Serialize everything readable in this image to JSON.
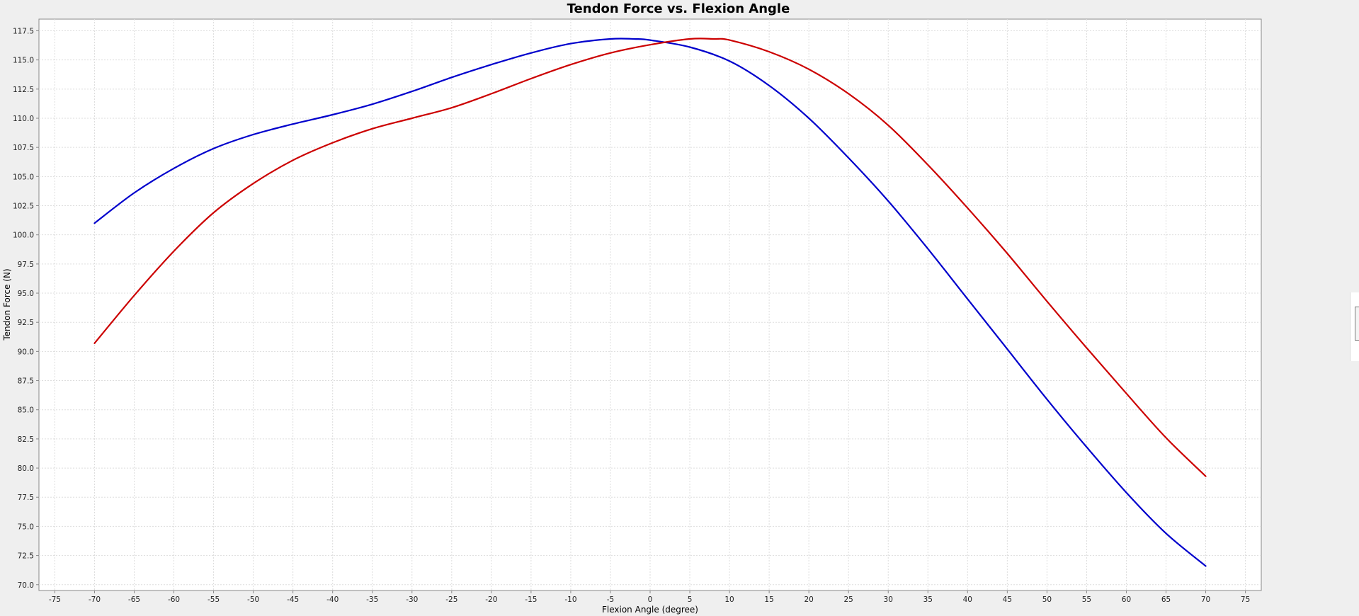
{
  "chart_data": {
    "type": "line",
    "title": "Tendon Force vs. Flexion Angle",
    "xlabel": "Flexion Angle (degree)",
    "ylabel": "Tendon Force (N)",
    "xlim": [
      -77,
      77
    ],
    "ylim": [
      69.5,
      118.5
    ],
    "xticks": [
      -75,
      -70,
      -65,
      -60,
      -55,
      -50,
      -45,
      -40,
      -35,
      -30,
      -25,
      -20,
      -15,
      -10,
      -5,
      0,
      5,
      10,
      15,
      20,
      25,
      30,
      35,
      40,
      45,
      50,
      55,
      60,
      65,
      70,
      75
    ],
    "yticks": [
      "70.0",
      "72.5",
      "75.0",
      "77.5",
      "80.0",
      "82.5",
      "85.0",
      "87.5",
      "90.0",
      "92.5",
      "95.0",
      "97.5",
      "100.0",
      "102.5",
      "105.0",
      "107.5",
      "110.0",
      "112.5",
      "115.0",
      "117.5"
    ],
    "grid": true,
    "legend": "none",
    "series": [
      {
        "color": "#0000cc",
        "x": [
          -70,
          -65,
          -60,
          -55,
          -50,
          -45,
          -40,
          -35,
          -30,
          -25,
          -20,
          -15,
          -10,
          -5,
          -2,
          0,
          5,
          10,
          15,
          20,
          25,
          30,
          35,
          40,
          45,
          50,
          55,
          60,
          65,
          70
        ],
        "y": [
          101.0,
          103.6,
          105.7,
          107.4,
          108.6,
          109.5,
          110.3,
          111.2,
          112.3,
          113.5,
          114.6,
          115.6,
          116.4,
          116.8,
          116.8,
          116.7,
          116.1,
          114.9,
          112.8,
          110.0,
          106.6,
          102.9,
          98.8,
          94.5,
          90.2,
          85.9,
          81.8,
          77.9,
          74.4,
          71.6
        ]
      },
      {
        "color": "#cc0000",
        "x": [
          -70,
          -65,
          -60,
          -55,
          -50,
          -45,
          -40,
          -35,
          -30,
          -25,
          -20,
          -15,
          -10,
          -5,
          0,
          5,
          8,
          10,
          15,
          20,
          25,
          30,
          35,
          40,
          45,
          50,
          55,
          60,
          65,
          70
        ],
        "y": [
          90.7,
          94.8,
          98.6,
          101.9,
          104.4,
          106.4,
          107.9,
          109.1,
          110.0,
          110.9,
          112.1,
          113.4,
          114.6,
          115.6,
          116.3,
          116.8,
          116.8,
          116.7,
          115.7,
          114.2,
          112.1,
          109.4,
          106.0,
          102.3,
          98.4,
          94.3,
          90.3,
          86.4,
          82.6,
          79.3
        ]
      }
    ]
  }
}
